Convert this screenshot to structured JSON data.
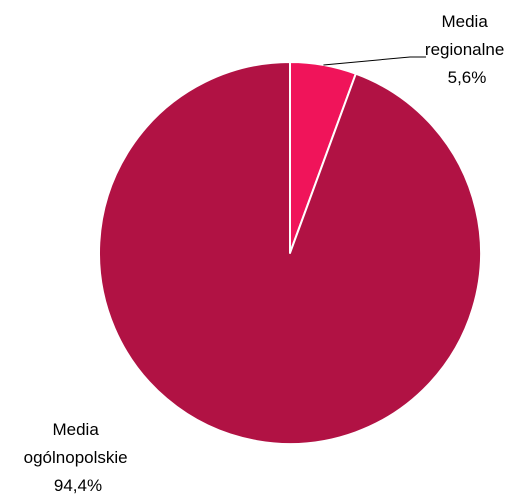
{
  "chart_data": {
    "type": "pie",
    "slices": [
      {
        "name": "Media regionalne",
        "label_lines": [
          "Media",
          "regionalne"
        ],
        "value": 5.6,
        "value_label": "5,6%",
        "color": "#f0145a"
      },
      {
        "name": "Media ogólnopolskie",
        "label_lines": [
          "Media",
          "ogólnopolskie"
        ],
        "value": 94.4,
        "value_label": "94,4%",
        "color": "#b11244"
      }
    ],
    "legend": false
  }
}
